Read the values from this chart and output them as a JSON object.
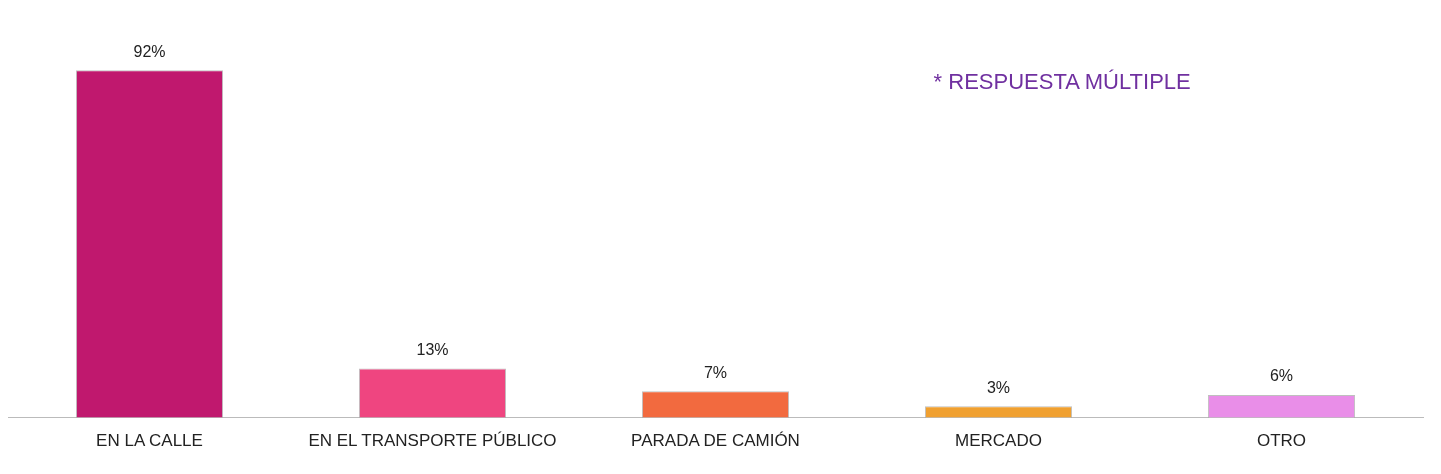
{
  "chart_data": {
    "type": "bar",
    "categories": [
      "EN LA CALLE",
      "EN EL TRANSPORTE PÚBLICO",
      "PARADA DE CAMIÓN",
      "MERCADO",
      "OTRO"
    ],
    "values": [
      92,
      13,
      7,
      3,
      6
    ],
    "colors": [
      "#c0186e",
      "#ef4580",
      "#f26a3f",
      "#f0a030",
      "#e98ee8"
    ],
    "value_labels": [
      "92%",
      "13%",
      "7%",
      "3%",
      "6%"
    ],
    "annotations": [
      "* RESPUESTA MÚLTIPLE"
    ],
    "grid": false,
    "legend": false
  }
}
